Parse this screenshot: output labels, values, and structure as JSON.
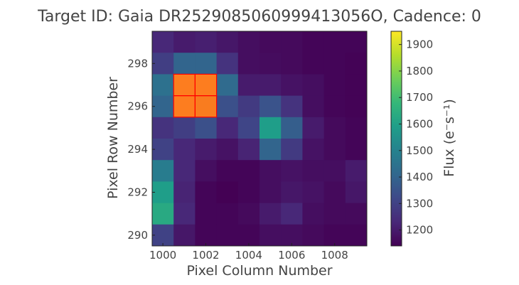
{
  "chart_data": {
    "type": "heatmap",
    "title": "Target ID: Gaia DR2529085060999413056O, Cadence: 0",
    "xlabel": "Pixel Column Number",
    "ylabel": "Pixel Row Number",
    "colorbar_label": "Flux (e⁻s⁻¹)",
    "x_first_column": 1000,
    "y_first_row": 290,
    "xlim": [
      999.5,
      1009.5
    ],
    "ylim": [
      289.5,
      299.5
    ],
    "x_ticks": [
      1000,
      1002,
      1004,
      1006,
      1008
    ],
    "y_ticks": [
      290,
      292,
      294,
      296,
      298
    ],
    "colorbar_range": [
      1140,
      1950
    ],
    "colorbar_ticks": [
      1200,
      1300,
      1400,
      1500,
      1600,
      1700,
      1800,
      1900
    ],
    "colormap": [
      "#440154",
      "#482878",
      "#3e4989",
      "#31688e",
      "#26828e",
      "#1f9e89",
      "#35b779",
      "#6ece58",
      "#b5de2b",
      "#fde725"
    ],
    "aperture_color": "#ff0000",
    "aperture_fill": "#ff5a1e",
    "aperture_pixels": [
      [
        1001,
        296
      ],
      [
        1002,
        296
      ],
      [
        1001,
        297
      ],
      [
        1002,
        297
      ]
    ],
    "rows": [
      {
        "row": 299,
        "values": [
          1230,
          1200,
          1210,
          1190,
          1170,
          1160,
          1160,
          1150,
          1150,
          1150
        ]
      },
      {
        "row": 298,
        "values": [
          1290,
          1400,
          1400,
          1260,
          1170,
          1165,
          1160,
          1150,
          1150,
          1145
        ]
      },
      {
        "row": 297,
        "values": [
          1440,
          1940,
          1940,
          1420,
          1200,
          1200,
          1180,
          1170,
          1150,
          1145
        ]
      },
      {
        "row": 296,
        "values": [
          1400,
          1940,
          1920,
          1340,
          1280,
          1350,
          1260,
          1170,
          1150,
          1145
        ]
      },
      {
        "row": 295,
        "values": [
          1260,
          1290,
          1340,
          1230,
          1310,
          1590,
          1380,
          1200,
          1160,
          1150
        ]
      },
      {
        "row": 294,
        "values": [
          1300,
          1230,
          1200,
          1180,
          1220,
          1400,
          1280,
          1180,
          1160,
          1150
        ]
      },
      {
        "row": 293,
        "values": [
          1480,
          1230,
          1170,
          1150,
          1150,
          1170,
          1180,
          1170,
          1170,
          1200
        ]
      },
      {
        "row": 292,
        "values": [
          1590,
          1220,
          1150,
          1140,
          1150,
          1170,
          1190,
          1180,
          1160,
          1190
        ]
      },
      {
        "row": 291,
        "values": [
          1630,
          1230,
          1150,
          1150,
          1160,
          1200,
          1230,
          1170,
          1160,
          1160
        ]
      },
      {
        "row": 290,
        "values": [
          1300,
          1190,
          1150,
          1150,
          1150,
          1170,
          1170,
          1160,
          1150,
          1150
        ]
      }
    ]
  }
}
